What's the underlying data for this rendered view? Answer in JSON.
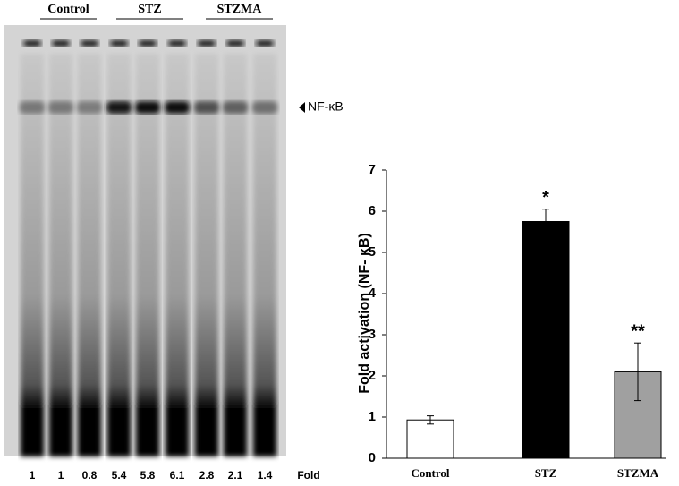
{
  "gel": {
    "group_labels": [
      "Control",
      "STZ",
      "STZMA"
    ],
    "band_label": "NF-κB",
    "fold_values": [
      1,
      1,
      0.8,
      5.4,
      5.8,
      6.1,
      2.8,
      2.1,
      1.4
    ],
    "fold_label": "Fold"
  },
  "chart_data": {
    "type": "bar",
    "y_label": "Fold activation (NF- κB)",
    "categories": [
      "Control",
      "STZ",
      "STZMA"
    ],
    "values": [
      0.93,
      5.75,
      2.1
    ],
    "errors": [
      0.1,
      0.3,
      0.7
    ],
    "colors": [
      "#ffffff",
      "#000000",
      "#a0a0a0"
    ],
    "annotations": [
      null,
      "*",
      "**"
    ],
    "ylim": [
      0,
      7
    ],
    "yticks": [
      0,
      1,
      2,
      3,
      4,
      5,
      6,
      7
    ]
  }
}
